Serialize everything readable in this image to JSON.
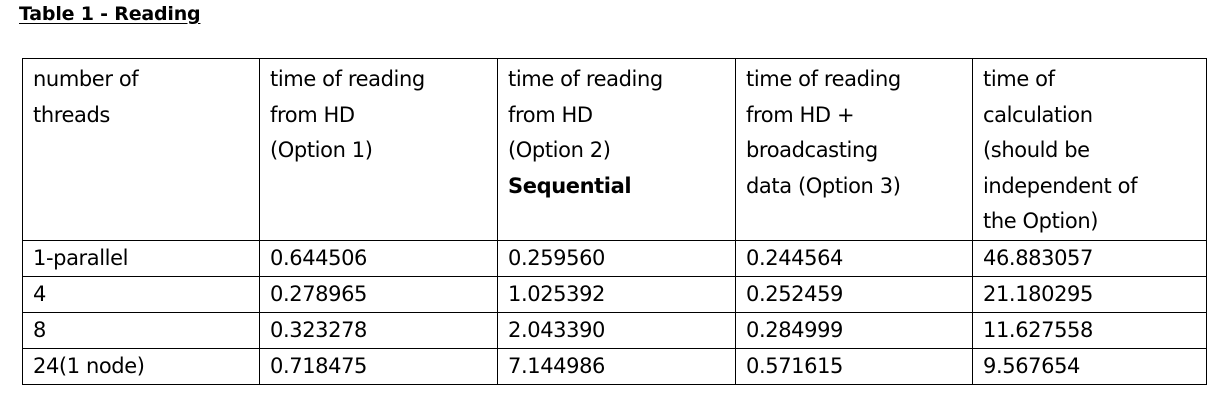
{
  "title": "Table 1 - Reading",
  "table": {
    "headers": [
      {
        "lines": [
          "number of",
          "threads"
        ]
      },
      {
        "lines": [
          "time of reading",
          "from HD",
          "(Option 1)"
        ]
      },
      {
        "lines": [
          "time of reading",
          "from HD",
          "(Option 2)"
        ],
        "bold_line": "Sequential"
      },
      {
        "lines": [
          "time of reading",
          "from HD +",
          "broadcasting",
          "data (Option 3)"
        ]
      },
      {
        "lines": [
          "time of",
          "calculation",
          "(should be",
          "independent of",
          "the Option)"
        ]
      }
    ],
    "rows": [
      [
        "1-parallel",
        "0.644506",
        "0.259560",
        "0.244564",
        "46.883057"
      ],
      [
        "4",
        "0.278965",
        "1.025392",
        "0.252459",
        "21.180295"
      ],
      [
        "8",
        "0.323278",
        "2.043390",
        "0.284999",
        "11.627558"
      ],
      [
        "24(1 node)",
        "0.718475",
        "7.144986",
        "0.571615",
        "9.567654"
      ]
    ]
  }
}
